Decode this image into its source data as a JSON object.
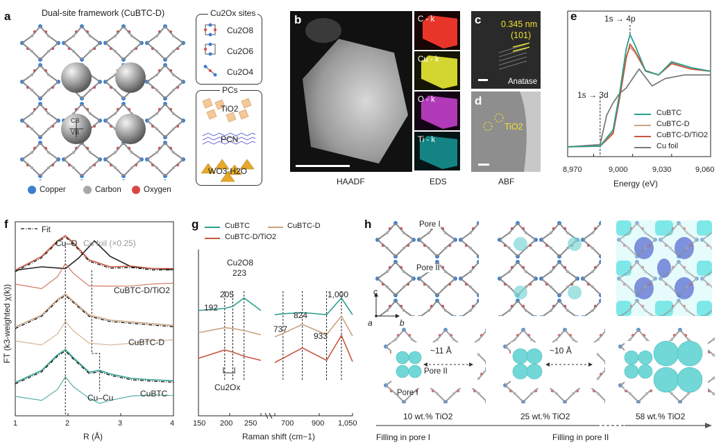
{
  "panels": {
    "a": {
      "label": "a",
      "title": "Dual-site framework (CuBTC-D)",
      "cb": "CB",
      "vb": "VB",
      "legend": [
        "Copper",
        "Carbon",
        "Oxygen"
      ],
      "legend_colors": [
        "#3b7fd0",
        "#a8a8a8",
        "#d84848"
      ],
      "sites_title": "Cu2Ox sites",
      "sites": [
        "Cu2O8",
        "Cu2O6",
        "Cu2O4"
      ],
      "pcs_title": "PCs",
      "pcs": [
        "TiO2",
        "PCN",
        "WO3·H2O"
      ]
    },
    "b": {
      "label": "b",
      "caption": "HAADF"
    },
    "eds": {
      "caption": "EDS",
      "maps": [
        {
          "name": "C - k",
          "color": "#e8352a"
        },
        {
          "name": "Cu - k",
          "color": "#d4d630"
        },
        {
          "name": "O - k",
          "color": "#b03ab8"
        },
        {
          "name": "Ti - k",
          "color": "#1aa8a8"
        }
      ]
    },
    "c": {
      "label": "c",
      "spacing": "0.345 nm",
      "plane": "(101)",
      "phase": "Anatase"
    },
    "d": {
      "label": "d",
      "material": "TiO2",
      "caption": "ABF"
    },
    "e": {
      "label": "e",
      "annot_top": "1s → 4p",
      "annot_bottom": "1s → 3d",
      "xlabel": "Energy (eV)",
      "xticks": [
        "8,970",
        "9,000",
        "9,030",
        "9,060"
      ],
      "legend": [
        "CuBTC",
        "CuBTC-D",
        "CuBTC-D/TiO2",
        "Cu foil"
      ],
      "colors": [
        "#2a9d8f",
        "#c9a27e",
        "#c8553d",
        "#7a7a7a"
      ]
    },
    "f": {
      "label": "f",
      "fit": "Fit",
      "cuo": "Cu–O",
      "cufoil": "Cu foil (×0.25)",
      "series": [
        "CuBTC-D/TiO2",
        "CuBTC-D",
        "CuBTC"
      ],
      "cucu": "Cu–Cu",
      "ylabel": "FT (k3-weighted χ(k))",
      "xlabel": "R (Å)",
      "xticks": [
        "1",
        "2",
        "3",
        "4"
      ]
    },
    "g": {
      "label": "g",
      "legend": [
        "CuBTC",
        "CuBTC-D",
        "CuBTC-D/TiO2"
      ],
      "peaks": [
        "Cu2O8",
        "223",
        "205",
        "192",
        "737",
        "824",
        "933",
        "1,000"
      ],
      "cu2ox": "Cu2Ox",
      "xlabel": "Raman shift (cm−1)",
      "xticks": [
        "150",
        "200",
        "250",
        "700",
        "900",
        "1,050"
      ]
    },
    "h": {
      "label": "h",
      "pore1": "Pore I",
      "pore2": "Pore II",
      "axes": [
        "c",
        "a",
        "b"
      ],
      "d1": "~11 Å",
      "d2": "~10 Å",
      "loadings": [
        "10 wt.% TiO2",
        "25 wt.% TiO2",
        "58 wt.% TiO2"
      ],
      "filling1": "Filling in pore I",
      "filling2": "Filling in pore II"
    }
  },
  "chart_data": [
    {
      "type": "line",
      "title": "",
      "xlabel": "Energy (eV)",
      "ylabel": "",
      "xlim": [
        8950,
        9060
      ],
      "series": [
        {
          "name": "CuBTC",
          "x": [
            8950,
            8975,
            8985,
            8990,
            8995,
            8998,
            9002,
            9010,
            9020,
            9030,
            9045,
            9060
          ],
          "y": [
            0.02,
            0.03,
            0.25,
            0.75,
            1.35,
            1.55,
            1.4,
            1.05,
            1.0,
            1.18,
            1.1,
            1.05
          ]
        },
        {
          "name": "CuBTC-D",
          "x": [
            8950,
            8975,
            8985,
            8990,
            8995,
            8998,
            9002,
            9010,
            9020,
            9030,
            9045,
            9060
          ],
          "y": [
            0.02,
            0.03,
            0.22,
            0.7,
            1.25,
            1.38,
            1.3,
            1.05,
            1.0,
            1.15,
            1.08,
            1.05
          ]
        },
        {
          "name": "CuBTC-D/TiO2",
          "x": [
            8950,
            8975,
            8985,
            8990,
            8995,
            8998,
            9002,
            9010,
            9020,
            9030,
            9045,
            9060
          ],
          "y": [
            0.02,
            0.03,
            0.2,
            0.68,
            1.22,
            1.42,
            1.32,
            1.06,
            1.0,
            1.16,
            1.08,
            1.05
          ]
        },
        {
          "name": "Cu foil",
          "x": [
            8950,
            8975,
            8980,
            8985,
            8990,
            8995,
            9000,
            9005,
            9015,
            9025,
            9040,
            9060
          ],
          "y": [
            0.02,
            0.05,
            0.45,
            0.62,
            0.75,
            0.82,
            0.95,
            1.08,
            0.85,
            0.95,
            1.0,
            1.0
          ]
        }
      ]
    },
    {
      "type": "line",
      "title": "",
      "xlabel": "R (Å)",
      "ylabel": "FT (k3-weighted χ(k))",
      "xlim": [
        1,
        4
      ],
      "series": [
        {
          "name": "Cu foil (×0.25)",
          "x": [
            1.0,
            1.5,
            1.95,
            2.2,
            2.5,
            2.8,
            3.2,
            3.6,
            4.0
          ],
          "y": [
            0.0,
            0.1,
            0.05,
            0.35,
            0.85,
            0.4,
            0.1,
            0.05,
            0.02
          ]
        },
        {
          "name": "CuBTC-D/TiO2",
          "x": [
            1.0,
            1.5,
            1.8,
            1.95,
            2.1,
            2.4,
            2.8,
            3.2,
            3.6,
            4.0
          ],
          "y": [
            0.0,
            0.4,
            0.85,
            1.0,
            0.8,
            0.3,
            0.1,
            0.12,
            0.05,
            0.05
          ]
        },
        {
          "name": "CuBTC-D",
          "x": [
            1.0,
            1.5,
            1.8,
            1.95,
            2.1,
            2.4,
            2.8,
            3.2,
            3.6,
            4.0
          ],
          "y": [
            0.0,
            0.35,
            0.8,
            0.95,
            0.75,
            0.35,
            0.2,
            0.15,
            0.1,
            0.05
          ]
        },
        {
          "name": "CuBTC",
          "x": [
            1.0,
            1.5,
            1.8,
            1.95,
            2.1,
            2.4,
            2.6,
            2.8,
            3.2,
            3.6,
            4.0
          ],
          "y": [
            0.0,
            0.35,
            0.8,
            0.95,
            0.72,
            0.3,
            0.35,
            0.25,
            0.12,
            0.08,
            0.05
          ]
        }
      ]
    },
    {
      "type": "line",
      "title": "",
      "xlabel": "Raman shift (cm−1)",
      "ylabel": "",
      "series": [
        {
          "name": "CuBTC",
          "x": [
            150,
            192,
            205,
            223,
            250,
            700,
            737,
            824,
            933,
            1000,
            1050
          ],
          "y": [
            0.7,
            0.75,
            0.8,
            1.0,
            0.7,
            0.6,
            0.62,
            0.65,
            0.6,
            1.0,
            0.6
          ]
        },
        {
          "name": "CuBTC-D",
          "x": [
            150,
            192,
            205,
            223,
            250,
            700,
            737,
            824,
            933,
            1000,
            1050
          ],
          "y": [
            0.5,
            0.62,
            0.6,
            0.55,
            0.45,
            0.4,
            0.48,
            0.7,
            0.45,
            0.9,
            0.42
          ]
        },
        {
          "name": "CuBTC-D/TiO2",
          "x": [
            150,
            192,
            205,
            223,
            250,
            700,
            737,
            824,
            933,
            1000,
            1050
          ],
          "y": [
            0.3,
            0.5,
            0.45,
            0.35,
            0.25,
            0.2,
            0.3,
            0.55,
            0.25,
            0.85,
            0.22
          ]
        }
      ]
    }
  ]
}
